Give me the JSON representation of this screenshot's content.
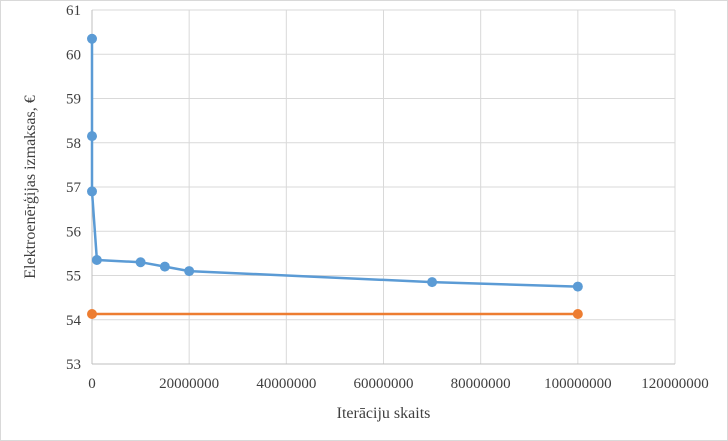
{
  "chart_data": {
    "type": "scatter",
    "title": "",
    "xlabel": "Iterāciju skaits",
    "ylabel": "Elektroenērģijas izmaksas, €",
    "xlim": [
      0,
      120000000
    ],
    "ylim": [
      53,
      61
    ],
    "x_ticks": [
      0,
      20000000,
      40000000,
      60000000,
      80000000,
      100000000,
      120000000
    ],
    "x_tick_labels": [
      "0",
      "20000000",
      "40000000",
      "60000000",
      "80000000",
      "100000000",
      "120000000"
    ],
    "y_ticks": [
      53,
      54,
      55,
      56,
      57,
      58,
      59,
      60,
      61
    ],
    "y_tick_labels": [
      "53",
      "54",
      "55",
      "56",
      "57",
      "58",
      "59",
      "60",
      "61"
    ],
    "grid": true,
    "legend": "none",
    "series": [
      {
        "color": "#5b9bd5",
        "x": [
          0,
          0,
          0,
          1000000,
          10000000,
          15000000,
          20000000,
          70000000,
          100000000
        ],
        "y": [
          60.35,
          58.15,
          56.9,
          55.35,
          55.3,
          55.2,
          55.1,
          54.85,
          54.75
        ]
      },
      {
        "color": "#ed7d31",
        "x": [
          0,
          100000000
        ],
        "y": [
          54.13,
          54.13
        ]
      }
    ]
  }
}
